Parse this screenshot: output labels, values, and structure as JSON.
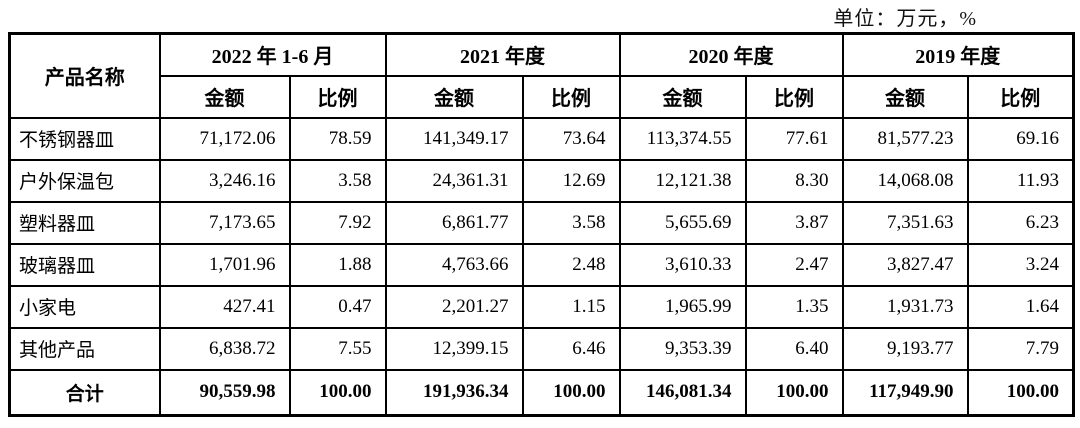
{
  "unit_label": "单位：万元，%",
  "table": {
    "product_header": "产品名称",
    "period_headers": [
      "2022 年 1-6 月",
      "2021 年度",
      "2020 年度",
      "2019 年度"
    ],
    "sub_headers": {
      "amount": "金额",
      "ratio": "比例"
    },
    "rows": [
      {
        "name": "不锈钢器皿",
        "values": [
          "71,172.06",
          "78.59",
          "141,349.17",
          "73.64",
          "113,374.55",
          "77.61",
          "81,577.23",
          "69.16"
        ]
      },
      {
        "name": "户外保温包",
        "values": [
          "3,246.16",
          "3.58",
          "24,361.31",
          "12.69",
          "12,121.38",
          "8.30",
          "14,068.08",
          "11.93"
        ]
      },
      {
        "name": "塑料器皿",
        "values": [
          "7,173.65",
          "7.92",
          "6,861.77",
          "3.58",
          "5,655.69",
          "3.87",
          "7,351.63",
          "6.23"
        ]
      },
      {
        "name": "玻璃器皿",
        "values": [
          "1,701.96",
          "1.88",
          "4,763.66",
          "2.48",
          "3,610.33",
          "2.47",
          "3,827.47",
          "3.24"
        ]
      },
      {
        "name": "小家电",
        "values": [
          "427.41",
          "0.47",
          "2,201.27",
          "1.15",
          "1,965.99",
          "1.35",
          "1,931.73",
          "1.64"
        ]
      },
      {
        "name": "其他产品",
        "values": [
          "6,838.72",
          "7.55",
          "12,399.15",
          "6.46",
          "9,353.39",
          "6.40",
          "9,193.77",
          "7.79"
        ]
      }
    ],
    "total_row": {
      "name": "合计",
      "values": [
        "90,559.98",
        "100.00",
        "191,936.34",
        "100.00",
        "146,081.34",
        "100.00",
        "117,949.90",
        "100.00"
      ]
    }
  }
}
